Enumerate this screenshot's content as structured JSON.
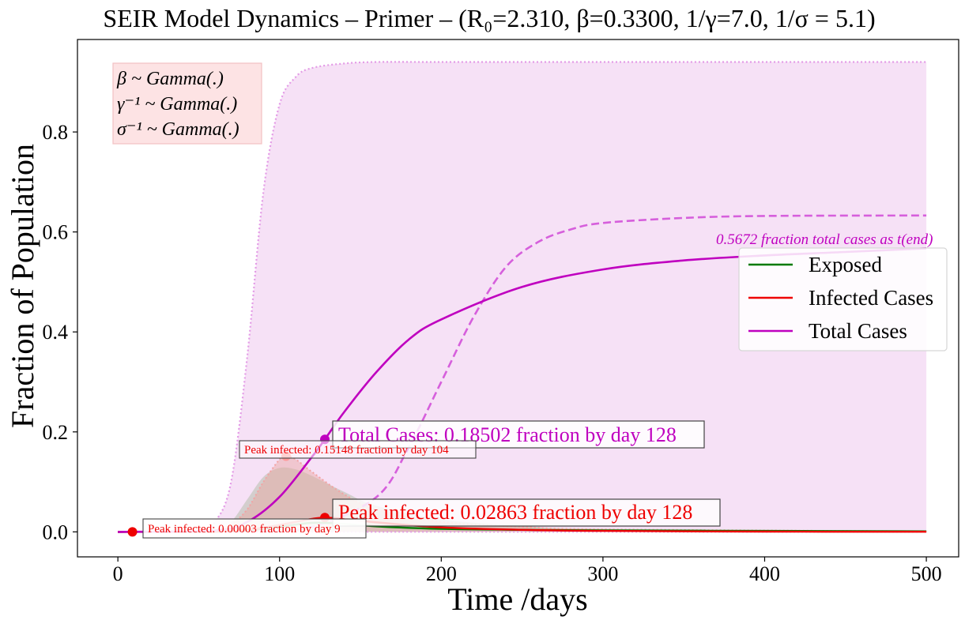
{
  "chart_data": {
    "type": "line",
    "title": "SEIR Model Dynamics – Primer – (R₀=2.310, β=0.3300, 1/γ=7.0, 1/σ = 5.1)",
    "xlabel": "Time /days",
    "ylabel": "Fraction of Population",
    "xlim": [
      -25,
      520
    ],
    "ylim": [
      -0.05,
      0.985
    ],
    "x_ticks": [
      0,
      100,
      200,
      300,
      400,
      500
    ],
    "x_tick_labels": [
      "0",
      "100",
      "200",
      "300",
      "400",
      "500"
    ],
    "y_ticks": [
      0.0,
      0.2,
      0.4,
      0.6,
      0.8
    ],
    "y_tick_labels": [
      "0.0",
      "0.2",
      "0.4",
      "0.6",
      "0.8"
    ],
    "grid": false,
    "legend_position": "right",
    "legend": [
      {
        "label": "Exposed",
        "color": "#007a00"
      },
      {
        "label": "Infected Cases",
        "color": "#ee0000"
      },
      {
        "label": "Total Cases",
        "color": "#bf00bf"
      }
    ],
    "colors": {
      "exposed": "#007a00",
      "infected": "#ee0000",
      "total": "#bf00bf",
      "total_light": "#d65fdc",
      "band_fill": "#f5dcf5"
    },
    "series": [
      {
        "name": "Exposed",
        "x": [
          0,
          60,
          80,
          100,
          120,
          140,
          160,
          200,
          250,
          300,
          400,
          500
        ],
        "values": [
          0,
          0.0005,
          0.003,
          0.01,
          0.018,
          0.016,
          0.011,
          0.006,
          0.004,
          0.003,
          0.002,
          0.001
        ]
      },
      {
        "name": "Infected Cases",
        "x": [
          0,
          60,
          80,
          100,
          120,
          128,
          140,
          160,
          200,
          250,
          300,
          400,
          500
        ],
        "values": [
          0,
          0.0006,
          0.004,
          0.014,
          0.026,
          0.0286,
          0.026,
          0.019,
          0.009,
          0.004,
          0.002,
          0.0005,
          0.0002
        ]
      },
      {
        "name": "Total Cases",
        "x": [
          0,
          60,
          80,
          100,
          120,
          128,
          140,
          160,
          180,
          200,
          250,
          300,
          350,
          400,
          450,
          500
        ],
        "values": [
          0,
          0.003,
          0.02,
          0.07,
          0.15,
          0.185,
          0.24,
          0.32,
          0.385,
          0.425,
          0.49,
          0.525,
          0.543,
          0.553,
          0.56,
          0.5672
        ]
      },
      {
        "name": "Total Cases (upper band)",
        "x": [
          0,
          50,
          60,
          70,
          80,
          90,
          100,
          110,
          120,
          140,
          160,
          200,
          300,
          500
        ],
        "values": [
          0,
          0.003,
          0.02,
          0.1,
          0.35,
          0.68,
          0.855,
          0.91,
          0.928,
          0.937,
          0.94,
          0.94,
          0.94,
          0.94
        ]
      },
      {
        "name": "Total Cases (dashed)",
        "x": [
          0,
          80,
          120,
          160,
          180,
          200,
          220,
          240,
          260,
          280,
          300,
          350,
          400,
          500
        ],
        "values": [
          0,
          0.001,
          0.01,
          0.07,
          0.17,
          0.3,
          0.43,
          0.53,
          0.58,
          0.605,
          0.618,
          0.628,
          0.632,
          0.633
        ]
      },
      {
        "name": "Infected Cases (upper band)",
        "x": [
          0,
          60,
          70,
          80,
          90,
          100,
          104,
          110,
          120,
          140,
          160,
          200,
          250,
          300,
          500
        ],
        "values": [
          0,
          0.002,
          0.015,
          0.045,
          0.1,
          0.145,
          0.1515,
          0.145,
          0.12,
          0.075,
          0.045,
          0.02,
          0.01,
          0.005,
          0.001
        ]
      },
      {
        "name": "Exposed (upper band)",
        "x": [
          0,
          60,
          70,
          80,
          90,
          100,
          110,
          120,
          140,
          160,
          200,
          250,
          300,
          500
        ],
        "values": [
          0,
          0.002,
          0.02,
          0.065,
          0.11,
          0.128,
          0.125,
          0.112,
          0.08,
          0.052,
          0.025,
          0.012,
          0.006,
          0.001
        ]
      }
    ],
    "markers": [
      {
        "x": 9,
        "y": 3e-05,
        "color": "#ee0000"
      },
      {
        "x": 104,
        "y": 0.15148,
        "color": "#ff9a9a"
      },
      {
        "x": 128,
        "y": 0.02863,
        "color": "#ee0000"
      },
      {
        "x": 128,
        "y": 0.18502,
        "color": "#bf00bf"
      }
    ],
    "annotations": {
      "peak_main": "Peak infected: 0.02863 fraction by day 128",
      "total_main": "Total Cases: 0.18502 fraction by day 128",
      "peak_upper": "Peak infected: 0.15148 fraction by day 104",
      "peak_lower": "Peak infected: 0.00003 fraction by day 9",
      "end_label": "0.5672 fraction total cases as t(end)"
    },
    "param_box": {
      "line1": "β ~ Gamma(.)",
      "line2": "γ⁻¹ ~ Gamma(.)",
      "line3": "σ⁻¹ ~ Gamma(.)"
    }
  }
}
